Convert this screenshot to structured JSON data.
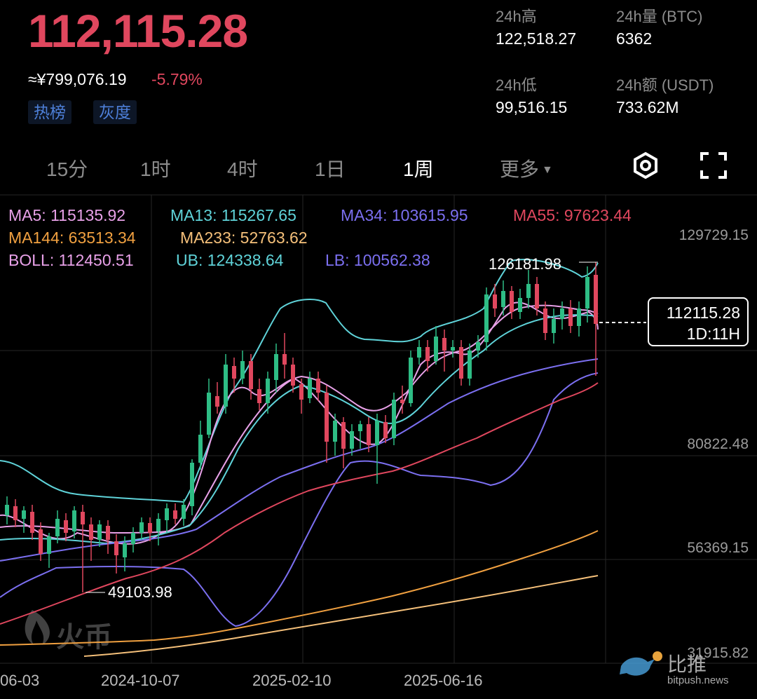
{
  "ticker": {
    "price": "112,115.28",
    "cny": "≈¥799,076.19",
    "change": "-5.79%",
    "tags": [
      "热榜",
      "灰度"
    ]
  },
  "stats": {
    "high_label": "24h高",
    "high": "122,518.27",
    "vol_label": "24h量 (BTC)",
    "vol": "6362",
    "low_label": "24h低",
    "low": "99,516.15",
    "amt_label": "24h额 (USDT)",
    "amt": "733.62M"
  },
  "timeframes": [
    "15分",
    "1时",
    "4时",
    "1日",
    "1周",
    "更多"
  ],
  "active_timeframe": "1周",
  "indicators": {
    "ma5": "MA5: 115135.92",
    "ma13": "MA13: 115267.65",
    "ma34": "MA34: 103615.95",
    "ma55": "MA55: 97623.44",
    "ma144": "MA144: 63513.34",
    "ma233": "MA233: 52763.62",
    "boll": "BOLL: 112450.51",
    "ub": "UB: 124338.64",
    "lb": "LB: 100562.38"
  },
  "colors": {
    "up": "#2ebd85",
    "down": "#e0475e",
    "ma5": "#e8a1e8",
    "ma13": "#5fd3d9",
    "ma34": "#7b6ff0",
    "ma55": "#e0475e",
    "ma144": "#f0a040",
    "ma233": "#f5c07a"
  },
  "chart": {
    "y_labels": [
      "129729.15",
      "80822.48",
      "56369.15",
      "31915.82"
    ],
    "x_labels": [
      "06-03",
      "2024-10-07",
      "2025-02-10",
      "2025-06-16"
    ],
    "high_marker": "126181.98",
    "low_marker": "49103.98",
    "current_price": "112115.28",
    "countdown": "1D:11H"
  },
  "chart_data": {
    "type": "candlestick",
    "ylim": [
      31915.82,
      129729.15
    ],
    "y_ticks": [
      129729.15,
      80822.48,
      56369.15,
      31915.82
    ],
    "x_ticks": [
      "06-03",
      "2024-10-07",
      "2025-02-10",
      "2025-06-16"
    ],
    "highest": 126181.98,
    "lowest": 49103.98,
    "last": 112115.28,
    "series": [
      {
        "name": "MA5",
        "value": 115135.92
      },
      {
        "name": "MA13",
        "value": 115267.65
      },
      {
        "name": "MA34",
        "value": 103615.95
      },
      {
        "name": "MA55",
        "value": 97623.44
      },
      {
        "name": "MA144",
        "value": 63513.34
      },
      {
        "name": "MA233",
        "value": 52763.62
      },
      {
        "name": "BOLL",
        "value": 112450.51
      },
      {
        "name": "UB",
        "value": 124338.64
      },
      {
        "name": "LB",
        "value": 100562.38
      }
    ]
  },
  "watermark": {
    "left_brand": "火币",
    "right_brand": "比推",
    "right_url": "bitpush.news"
  }
}
